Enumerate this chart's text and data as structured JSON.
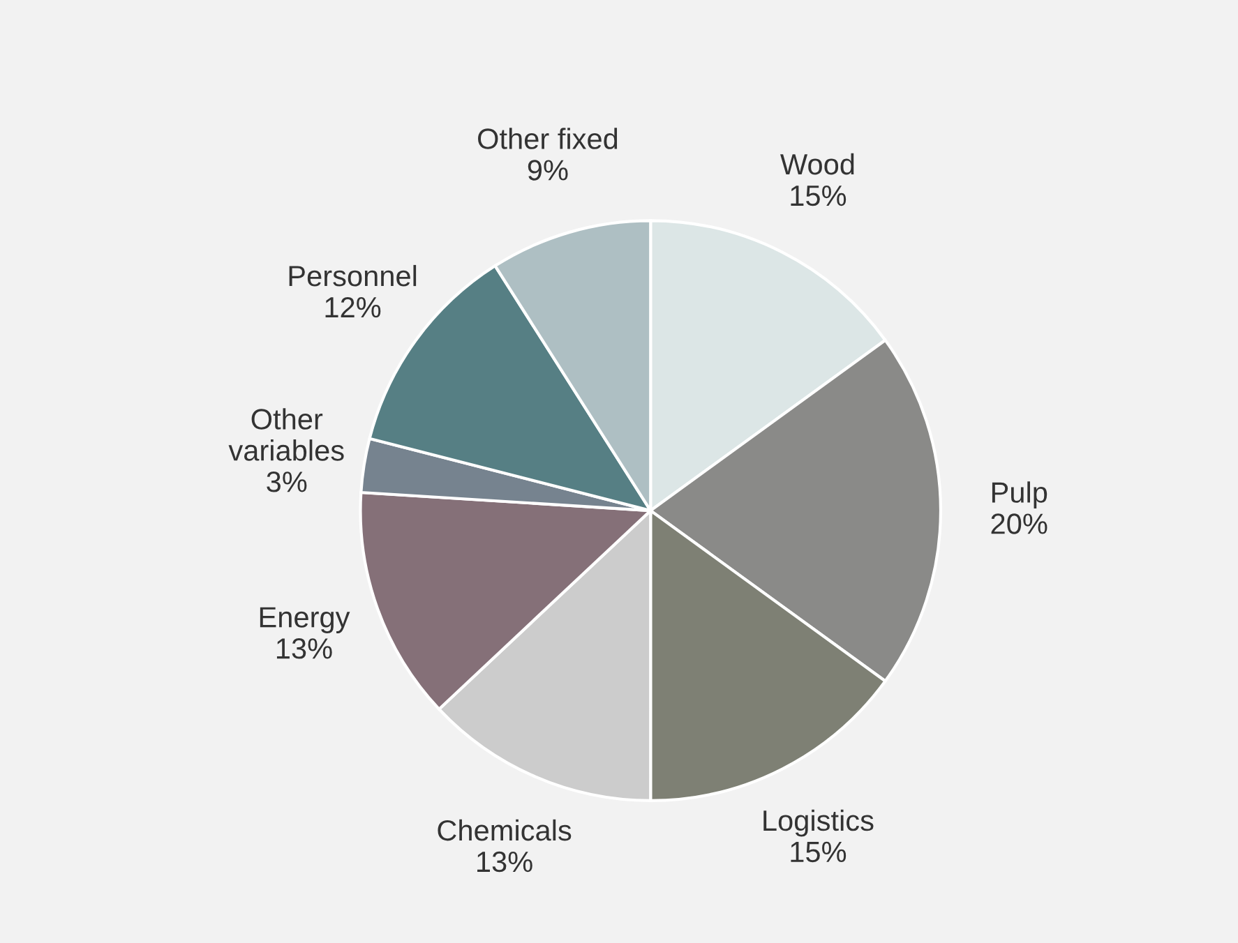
{
  "chart_data": {
    "type": "pie",
    "categories": [
      "Wood",
      "Pulp",
      "Logistics",
      "Chemicals",
      "Energy",
      "Other\nvariables",
      "Personnel",
      "Other fixed"
    ],
    "values": [
      15,
      20,
      15,
      13,
      13,
      3,
      12,
      9
    ],
    "colors": [
      "#dce6e6",
      "#8a8a88",
      "#7e8074",
      "#cccccc",
      "#857078",
      "#76838f",
      "#567f84",
      "#aebfc3"
    ],
    "value_labels": [
      "15%",
      "20%",
      "15%",
      "13%",
      "13%",
      "3%",
      "12%",
      "9%"
    ]
  }
}
